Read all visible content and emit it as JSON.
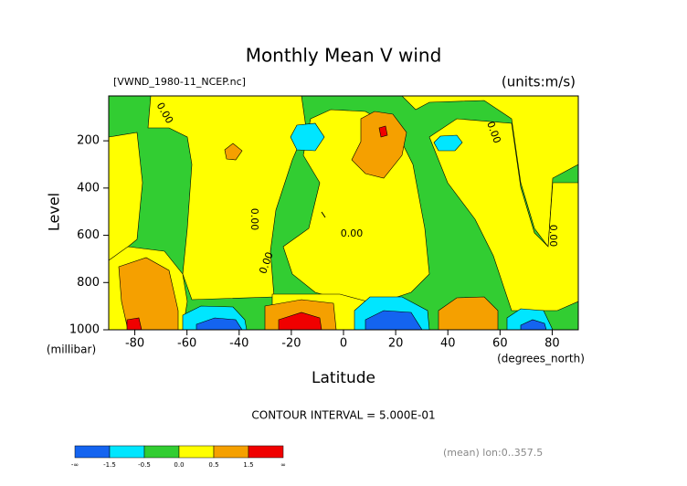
{
  "chart_data": {
    "type": "contour",
    "title": "Monthly Mean V wind",
    "source": "[VWND_1980-11_NCEP.nc]",
    "units": "(units:m/s)",
    "ylabel": "Level",
    "yunits": "(millibar)",
    "xlabel": "Latitude",
    "xunits": "(degrees_north)",
    "contour_interval": "CONTOUR INTERVAL = 5.000E-01",
    "footnote": "(mean) lon:0..357.5",
    "xlim": [
      -90,
      90
    ],
    "xticks": [
      -80,
      -60,
      -40,
      -20,
      0,
      20,
      40,
      60,
      80
    ],
    "ylim": [
      10,
      1000
    ],
    "y_inverted": true,
    "yticks": [
      200,
      400,
      600,
      800,
      1000
    ],
    "contour_labels": [
      "0.00",
      "0.00",
      "0.00",
      "0.00",
      "0.00",
      "0.00"
    ],
    "colorbar": {
      "labels": [
        "-∞",
        "-1.5",
        "-0.5",
        "0.0",
        "0.5",
        "1.5",
        "∞"
      ],
      "colors": [
        "#1464f0",
        "#00e6ff",
        "#32cd32",
        "#ffff00",
        "#f5a000",
        "#f00000"
      ]
    }
  }
}
